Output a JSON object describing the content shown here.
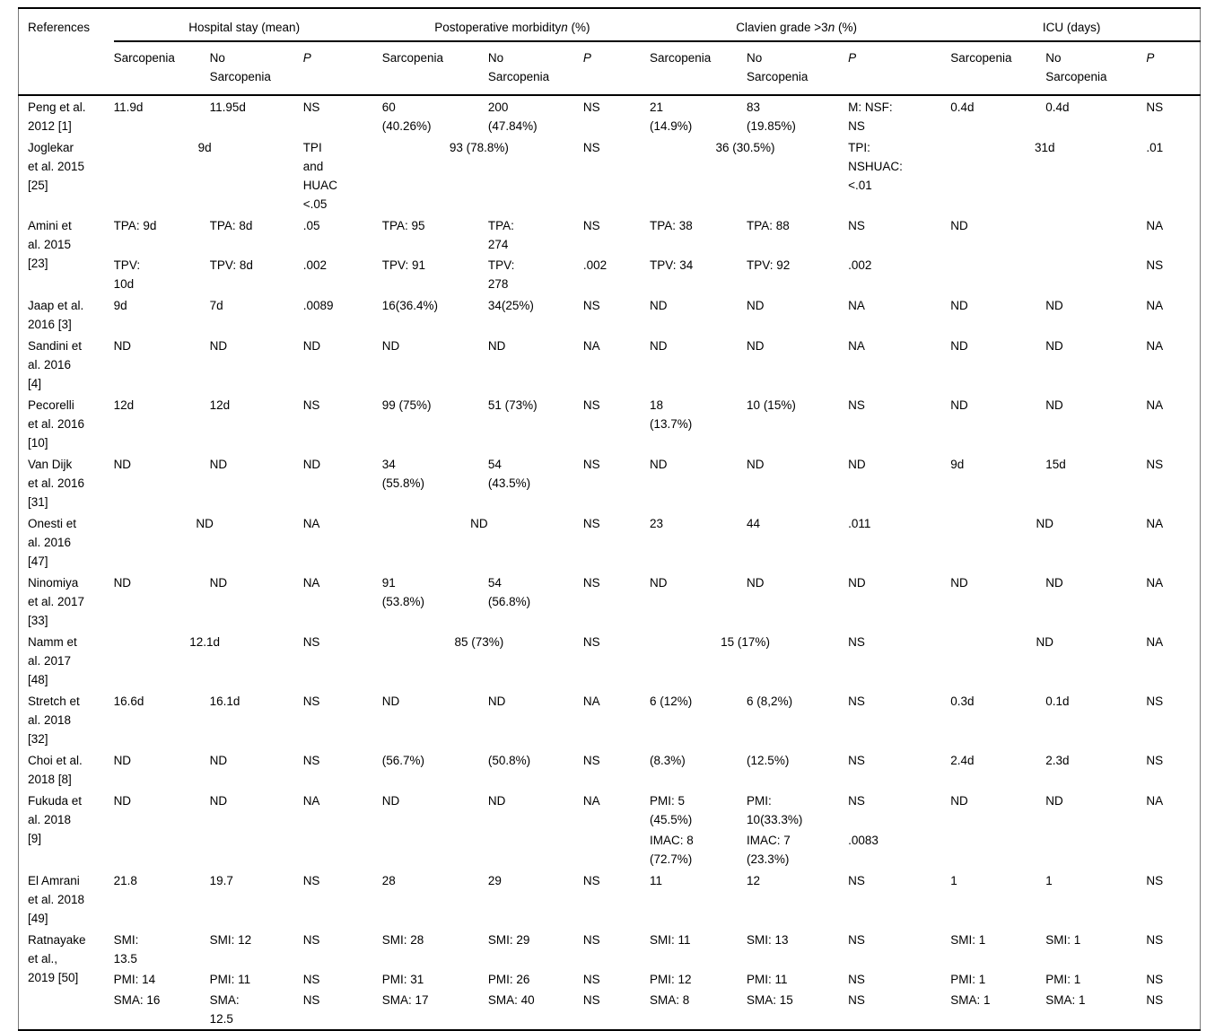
{
  "table": {
    "references_header": "References",
    "groups": [
      {
        "pre": "Hospital stay (mean)",
        "it": "",
        "post": ""
      },
      {
        "pre": "Postoperative morbidity",
        "it": "n",
        "post": " (%)"
      },
      {
        "pre": "Clavien grade >3",
        "it": "n",
        "post": " (%)"
      },
      {
        "pre": "ICU (days)",
        "it": "",
        "post": ""
      }
    ],
    "subheaders": {
      "sarcopenia": "Sarcopenia",
      "no_sarcopenia": "No\nSarcopenia",
      "p": "P"
    },
    "rows": [
      {
        "ref": "Peng et al.\n2012 [1]",
        "subrows": [
          [
            "11.9d",
            "11.95d",
            "NS",
            "60\n(40.26%)",
            "200\n(47.84%)",
            "NS",
            "21\n(14.9%)",
            "83\n(19.85%)",
            "M: NSF:\nNS",
            "0.4d",
            "0.4d",
            "NS"
          ]
        ]
      },
      {
        "ref": "Joglekar\net al. 2015\n[25]",
        "subrows": [
          [
            {
              "t": "9d",
              "span": 2,
              "center": true
            },
            "TPI\nand\nHUAC\n<.05",
            {
              "t": "93 (78.8%)",
              "span": 2,
              "center": true
            },
            "NS",
            {
              "t": "36 (30.5%)",
              "span": 2,
              "center": true
            },
            "TPI:\nNSHUAC:\n<.01",
            {
              "t": "31d",
              "span": 2,
              "center": true
            },
            ".01"
          ]
        ]
      },
      {
        "ref": "Amini et\nal. 2015\n[23]",
        "subrows": [
          [
            "TPA: 9d",
            "TPA: 8d",
            ".05",
            "TPA: 95",
            "TPA:\n274",
            "NS",
            "TPA: 38",
            "TPA: 88",
            "NS",
            "ND",
            "",
            "NA"
          ],
          [
            "TPV:\n10d",
            "TPV: 8d",
            ".002",
            "TPV: 91",
            "TPV:\n278",
            ".002",
            "TPV: 34",
            "TPV: 92",
            ".002",
            "",
            "",
            "NS"
          ]
        ]
      },
      {
        "ref": "Jaap et al.\n2016 [3]",
        "subrows": [
          [
            "9d",
            "7d",
            ".0089",
            "16(36.4%)",
            "34(25%)",
            "NS",
            "ND",
            "ND",
            "NA",
            "ND",
            "ND",
            "NA"
          ]
        ]
      },
      {
        "ref": "Sandini et\nal. 2016\n[4]",
        "subrows": [
          [
            "ND",
            "ND",
            "ND",
            "ND",
            "ND",
            "NA",
            "ND",
            "ND",
            "NA",
            "ND",
            "ND",
            "NA"
          ]
        ]
      },
      {
        "ref": "Pecorelli\net al. 2016\n[10]",
        "subrows": [
          [
            "12d",
            "12d",
            "NS",
            "99 (75%)",
            "51 (73%)",
            "NS",
            "18\n(13.7%)",
            "10 (15%)",
            "NS",
            "ND",
            "ND",
            "NA"
          ]
        ]
      },
      {
        "ref": "Van Dijk\net al. 2016\n[31]",
        "subrows": [
          [
            "ND",
            "ND",
            "ND",
            "34\n(55.8%)",
            "54\n(43.5%)",
            "NS",
            "ND",
            "ND",
            "ND",
            "9d",
            "15d",
            "NS"
          ]
        ]
      },
      {
        "ref": "Onesti et\nal. 2016\n[47]",
        "subrows": [
          [
            {
              "t": "ND",
              "span": 2,
              "center": true
            },
            "NA",
            {
              "t": "ND",
              "span": 2,
              "center": true
            },
            "NS",
            "23",
            "44",
            ".011",
            {
              "t": "ND",
              "span": 2,
              "center": true
            },
            "NA"
          ]
        ]
      },
      {
        "ref": "Ninomiya\net al. 2017\n[33]",
        "subrows": [
          [
            "ND",
            "ND",
            "NA",
            "91\n(53.8%)",
            "54\n(56.8%)",
            "NS",
            "ND",
            "ND",
            "ND",
            "ND",
            "ND",
            "NA"
          ]
        ]
      },
      {
        "ref": "Namm et\nal. 2017\n[48]",
        "subrows": [
          [
            {
              "t": "12.1d",
              "span": 2,
              "center": true
            },
            "NS",
            {
              "t": "85 (73%)",
              "span": 2,
              "center": true
            },
            "NS",
            {
              "t": "15 (17%)",
              "span": 2,
              "center": true
            },
            "NS",
            {
              "t": "ND",
              "span": 2,
              "center": true
            },
            "NA"
          ]
        ]
      },
      {
        "ref": "Stretch et\nal. 2018\n[32]",
        "subrows": [
          [
            "16.6d",
            "16.1d",
            "NS",
            "ND",
            "ND",
            "NA",
            "6 (12%)",
            "6 (8,2%)",
            "NS",
            "0.3d",
            "0.1d",
            "NS"
          ]
        ]
      },
      {
        "ref": "Choi et al.\n2018 [8]",
        "subrows": [
          [
            "ND",
            "ND",
            "NS",
            "(56.7%)",
            "(50.8%)",
            "NS",
            "(8.3%)",
            "(12.5%)",
            "NS",
            "2.4d",
            "2.3d",
            "NS"
          ]
        ]
      },
      {
        "ref": "Fukuda et\nal. 2018\n[9]",
        "subrows": [
          [
            "ND",
            "ND",
            "NA",
            "ND",
            "ND",
            "NA",
            "PMI: 5\n(45.5%)",
            "PMI:\n10(33.3%)",
            "NS",
            "ND",
            "ND",
            "NA"
          ],
          [
            "",
            "",
            "",
            "",
            "",
            "",
            "IMAC: 8\n(72.7%)",
            "IMAC: 7\n(23.3%)",
            ".0083",
            "",
            "",
            ""
          ]
        ]
      },
      {
        "ref": "El Amrani\net al. 2018\n[49]",
        "subrows": [
          [
            "21.8",
            "19.7",
            "NS",
            "28",
            "29",
            "NS",
            "11",
            "12",
            "NS",
            "1",
            "1",
            "NS"
          ]
        ]
      },
      {
        "ref": "Ratnayake\net al.,\n2019 [50]",
        "subrows": [
          [
            "SMI:\n13.5",
            "SMI: 12",
            "NS",
            "SMI: 28",
            "SMI: 29",
            "NS",
            "SMI: 11",
            "SMI: 13",
            "NS",
            "SMI: 1",
            "SMI: 1",
            "NS"
          ],
          [
            "PMI: 14",
            "PMI: 11",
            "NS",
            "PMI: 31",
            "PMI: 26",
            "NS",
            "PMI: 12",
            "PMI: 11",
            "NS",
            "PMI: 1",
            "PMI: 1",
            "NS"
          ],
          [
            "SMA: 16",
            "SMA:\n12.5",
            "NS",
            "SMA: 17",
            "SMA: 40",
            "NS",
            "SMA: 8",
            "SMA: 15",
            "NS",
            "SMA: 1",
            "SMA: 1",
            "NS"
          ]
        ]
      }
    ]
  }
}
